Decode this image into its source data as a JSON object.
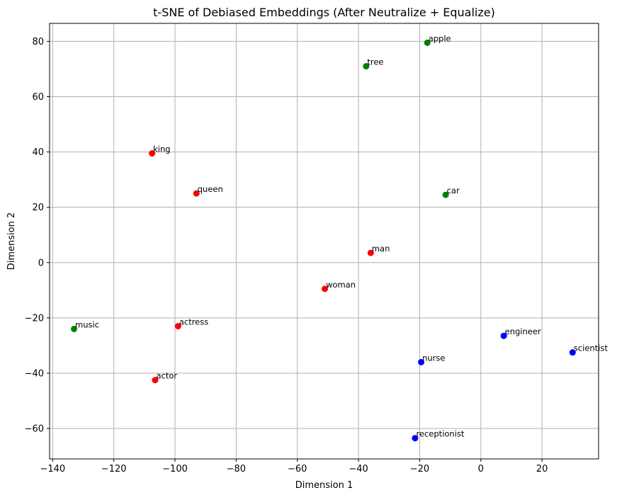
{
  "chart_data": {
    "type": "scatter",
    "title": "t-SNE of Debiased Embeddings (After Neutralize + Equalize)",
    "xlabel": "Dimension 1",
    "ylabel": "Dimension 2",
    "xlim": [
      -141,
      38.5
    ],
    "ylim": [
      -71,
      86.5
    ],
    "xticks": [
      -140,
      -120,
      -100,
      -80,
      -60,
      -40,
      -20,
      0,
      20
    ],
    "yticks": [
      -60,
      -40,
      -20,
      0,
      20,
      40,
      60,
      80
    ],
    "xtick_labels": [
      "−140",
      "−120",
      "−100",
      "−80",
      "−60",
      "−40",
      "−20",
      "0",
      "20"
    ],
    "ytick_labels": [
      "−60",
      "−40",
      "−20",
      "0",
      "20",
      "40",
      "60",
      "80"
    ],
    "grid": true,
    "colors": {
      "red": "#ff0000",
      "green": "#008000",
      "blue": "#0000ff"
    },
    "points": [
      {
        "label": "apple",
        "x": -17.5,
        "y": 79.5,
        "color": "#008000"
      },
      {
        "label": "tree",
        "x": -37.5,
        "y": 71.0,
        "color": "#008000"
      },
      {
        "label": "king",
        "x": -107.5,
        "y": 39.5,
        "color": "#ff0000"
      },
      {
        "label": "queen",
        "x": -93.0,
        "y": 25.0,
        "color": "#ff0000"
      },
      {
        "label": "car",
        "x": -11.5,
        "y": 24.5,
        "color": "#008000"
      },
      {
        "label": "man",
        "x": -36.0,
        "y": 3.5,
        "color": "#ff0000"
      },
      {
        "label": "woman",
        "x": -51.0,
        "y": -9.5,
        "color": "#ff0000"
      },
      {
        "label": "music",
        "x": -133.0,
        "y": -24.0,
        "color": "#008000"
      },
      {
        "label": "actress",
        "x": -99.0,
        "y": -23.0,
        "color": "#ff0000"
      },
      {
        "label": "engineer",
        "x": 7.5,
        "y": -26.5,
        "color": "#0000ff"
      },
      {
        "label": "scientist",
        "x": 30.0,
        "y": -32.5,
        "color": "#0000ff"
      },
      {
        "label": "nurse",
        "x": -19.5,
        "y": -36.0,
        "color": "#0000ff"
      },
      {
        "label": "actor",
        "x": -106.5,
        "y": -42.5,
        "color": "#ff0000"
      },
      {
        "label": "receptionist",
        "x": -21.5,
        "y": -63.5,
        "color": "#0000ff"
      }
    ]
  }
}
